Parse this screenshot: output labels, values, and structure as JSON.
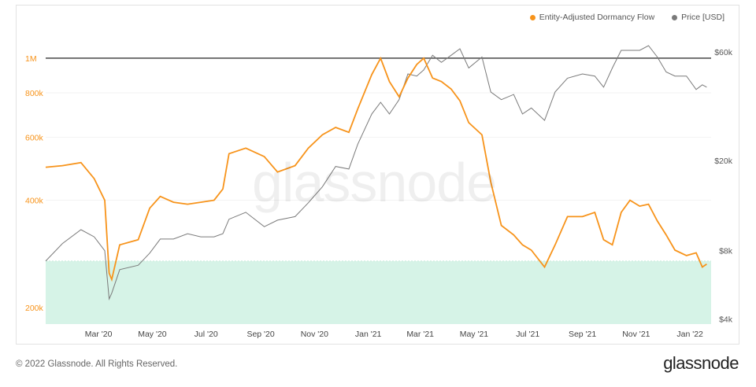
{
  "legend": [
    {
      "label": "Entity-Adjusted Dormancy Flow",
      "color": "#f7931a"
    },
    {
      "label": "Price [USD]",
      "color": "#7a7a7a"
    }
  ],
  "watermark": "glassnode",
  "footer": {
    "copyright": "© 2022 Glassnode. All Rights Reserved.",
    "logo": "glassnode"
  },
  "chart_data": {
    "type": "line",
    "x_ticks": [
      "Mar '20",
      "May '20",
      "Jul '20",
      "Sep '20",
      "Nov '20",
      "Jan '21",
      "Mar '21",
      "May '21",
      "Jul '21",
      "Sep '21",
      "Nov '21",
      "Jan '22"
    ],
    "y_left": {
      "scale": "log",
      "ticks": [
        "200k",
        "400k",
        "600k",
        "800k",
        "1M"
      ],
      "range": [
        180000,
        1250000
      ]
    },
    "y_right": {
      "scale": "log",
      "ticks": [
        "$4k",
        "$8k",
        "$20k",
        "$60k"
      ],
      "range": [
        3800,
        80000
      ]
    },
    "reference_line": {
      "value": 1000000,
      "axis": "left"
    },
    "band": {
      "from": 180000,
      "to": 270000,
      "color": "#d6f3e7"
    },
    "series": [
      {
        "name": "Entity-Adjusted Dormancy Flow",
        "axis": "left",
        "color": "#f7931a",
        "points": [
          [
            "2020-01-01",
            495000
          ],
          [
            "2020-01-20",
            500000
          ],
          [
            "2020-02-10",
            510000
          ],
          [
            "2020-02-25",
            460000
          ],
          [
            "2020-03-08",
            400000
          ],
          [
            "2020-03-13",
            250000
          ],
          [
            "2020-03-16",
            240000
          ],
          [
            "2020-03-25",
            300000
          ],
          [
            "2020-04-15",
            310000
          ],
          [
            "2020-04-28",
            380000
          ],
          [
            "2020-05-10",
            410000
          ],
          [
            "2020-05-25",
            395000
          ],
          [
            "2020-06-10",
            390000
          ],
          [
            "2020-06-25",
            395000
          ],
          [
            "2020-07-10",
            400000
          ],
          [
            "2020-07-20",
            430000
          ],
          [
            "2020-07-27",
            540000
          ],
          [
            "2020-08-15",
            560000
          ],
          [
            "2020-09-05",
            530000
          ],
          [
            "2020-09-20",
            480000
          ],
          [
            "2020-10-10",
            500000
          ],
          [
            "2020-10-25",
            560000
          ],
          [
            "2020-11-10",
            610000
          ],
          [
            "2020-11-25",
            640000
          ],
          [
            "2020-12-10",
            620000
          ],
          [
            "2020-12-20",
            720000
          ],
          [
            "2021-01-05",
            900000
          ],
          [
            "2021-01-15",
            1000000
          ],
          [
            "2021-01-25",
            860000
          ],
          [
            "2021-02-05",
            780000
          ],
          [
            "2021-02-15",
            880000
          ],
          [
            "2021-02-25",
            960000
          ],
          [
            "2021-03-05",
            1000000
          ],
          [
            "2021-03-15",
            880000
          ],
          [
            "2021-03-25",
            860000
          ],
          [
            "2021-04-05",
            820000
          ],
          [
            "2021-04-15",
            760000
          ],
          [
            "2021-04-25",
            660000
          ],
          [
            "2021-05-10",
            610000
          ],
          [
            "2021-05-20",
            450000
          ],
          [
            "2021-06-01",
            340000
          ],
          [
            "2021-06-15",
            320000
          ],
          [
            "2021-06-25",
            300000
          ],
          [
            "2021-07-05",
            290000
          ],
          [
            "2021-07-20",
            260000
          ],
          [
            "2021-08-01",
            300000
          ],
          [
            "2021-08-15",
            360000
          ],
          [
            "2021-09-01",
            360000
          ],
          [
            "2021-09-15",
            370000
          ],
          [
            "2021-09-25",
            310000
          ],
          [
            "2021-10-05",
            300000
          ],
          [
            "2021-10-15",
            370000
          ],
          [
            "2021-10-25",
            400000
          ],
          [
            "2021-11-05",
            385000
          ],
          [
            "2021-11-15",
            390000
          ],
          [
            "2021-11-25",
            350000
          ],
          [
            "2021-12-05",
            320000
          ],
          [
            "2021-12-15",
            290000
          ],
          [
            "2021-12-28",
            280000
          ],
          [
            "2022-01-08",
            285000
          ],
          [
            "2022-01-15",
            260000
          ],
          [
            "2022-01-20",
            265000
          ]
        ]
      },
      {
        "name": "Price [USD]",
        "axis": "right",
        "color": "#7a7a7a",
        "points": [
          [
            "2020-01-01",
            7200
          ],
          [
            "2020-01-20",
            8600
          ],
          [
            "2020-02-10",
            9900
          ],
          [
            "2020-02-25",
            9200
          ],
          [
            "2020-03-08",
            8000
          ],
          [
            "2020-03-13",
            4900
          ],
          [
            "2020-03-16",
            5200
          ],
          [
            "2020-03-25",
            6600
          ],
          [
            "2020-04-15",
            6900
          ],
          [
            "2020-04-28",
            7800
          ],
          [
            "2020-05-10",
            9000
          ],
          [
            "2020-05-25",
            9000
          ],
          [
            "2020-06-10",
            9500
          ],
          [
            "2020-06-25",
            9200
          ],
          [
            "2020-07-10",
            9200
          ],
          [
            "2020-07-20",
            9500
          ],
          [
            "2020-07-27",
            11000
          ],
          [
            "2020-08-15",
            11800
          ],
          [
            "2020-09-05",
            10200
          ],
          [
            "2020-09-20",
            10900
          ],
          [
            "2020-10-10",
            11300
          ],
          [
            "2020-10-25",
            13000
          ],
          [
            "2020-11-10",
            15300
          ],
          [
            "2020-11-25",
            18800
          ],
          [
            "2020-12-10",
            18300
          ],
          [
            "2020-12-20",
            23500
          ],
          [
            "2021-01-05",
            32000
          ],
          [
            "2021-01-15",
            36000
          ],
          [
            "2021-01-25",
            32000
          ],
          [
            "2021-02-05",
            37000
          ],
          [
            "2021-02-15",
            48000
          ],
          [
            "2021-02-25",
            47000
          ],
          [
            "2021-03-05",
            50000
          ],
          [
            "2021-03-15",
            58000
          ],
          [
            "2021-03-25",
            54000
          ],
          [
            "2021-04-05",
            58000
          ],
          [
            "2021-04-15",
            62000
          ],
          [
            "2021-04-25",
            51000
          ],
          [
            "2021-05-10",
            57000
          ],
          [
            "2021-05-20",
            40000
          ],
          [
            "2021-06-01",
            37000
          ],
          [
            "2021-06-15",
            39000
          ],
          [
            "2021-06-25",
            32000
          ],
          [
            "2021-07-05",
            34000
          ],
          [
            "2021-07-20",
            30000
          ],
          [
            "2021-08-01",
            40000
          ],
          [
            "2021-08-15",
            46000
          ],
          [
            "2021-09-01",
            48000
          ],
          [
            "2021-09-15",
            47000
          ],
          [
            "2021-09-25",
            42000
          ],
          [
            "2021-10-05",
            51000
          ],
          [
            "2021-10-15",
            61000
          ],
          [
            "2021-10-25",
            61000
          ],
          [
            "2021-11-05",
            61000
          ],
          [
            "2021-11-15",
            64000
          ],
          [
            "2021-11-25",
            57000
          ],
          [
            "2021-12-05",
            49000
          ],
          [
            "2021-12-15",
            47000
          ],
          [
            "2021-12-28",
            47000
          ],
          [
            "2022-01-08",
            41000
          ],
          [
            "2022-01-15",
            43000
          ],
          [
            "2022-01-20",
            42000
          ]
        ]
      }
    ]
  }
}
